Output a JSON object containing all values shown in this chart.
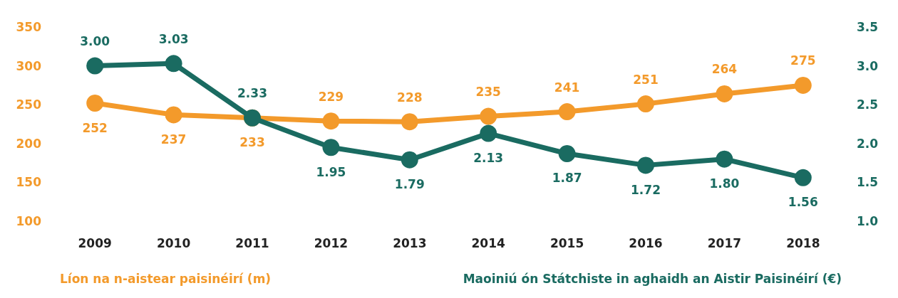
{
  "chart_data": {
    "type": "line",
    "categories": [
      "2009",
      "2010",
      "2011",
      "2012",
      "2013",
      "2014",
      "2015",
      "2016",
      "2017",
      "2018"
    ],
    "series": [
      {
        "name": "Líon na n-aistear paisinéirí (m)",
        "color": "#f39a2b",
        "values": [
          252,
          237,
          233,
          229,
          228,
          235,
          241,
          251,
          264,
          275
        ],
        "value_labels": [
          "252",
          "237",
          "233",
          "229",
          "228",
          "235",
          "241",
          "251",
          "264",
          "275"
        ]
      },
      {
        "name": "Maoiniú ón Státchiste in aghaidh an Aistir Paisinéirí (€)",
        "color": "#1a6b61",
        "axis": "y2",
        "values": [
          3.0,
          3.03,
          2.33,
          1.95,
          1.79,
          2.13,
          1.87,
          1.72,
          1.8,
          1.56
        ],
        "value_labels": [
          "3.00",
          "3.03",
          "2.33",
          "1.95",
          "1.79",
          "2.13",
          "1.87",
          "1.72",
          "1.80",
          "1.56"
        ]
      }
    ],
    "ylim": [
      100,
      350
    ],
    "yticks": [
      100,
      150,
      200,
      250,
      300,
      350
    ],
    "y2lim": [
      1,
      3.5
    ],
    "y2ticks": [
      {
        "value": 1,
        "label": "1.0"
      },
      {
        "value": 1.5,
        "label": "1.5"
      },
      {
        "value": 2,
        "label": "2.0"
      },
      {
        "value": 2.5,
        "label": "2.5"
      },
      {
        "value": 3,
        "label": "3.0"
      },
      {
        "value": 3.5,
        "label": "3.5"
      }
    ],
    "grid": false,
    "legend": "bottom",
    "marker": "circle",
    "line_style": "solid"
  }
}
